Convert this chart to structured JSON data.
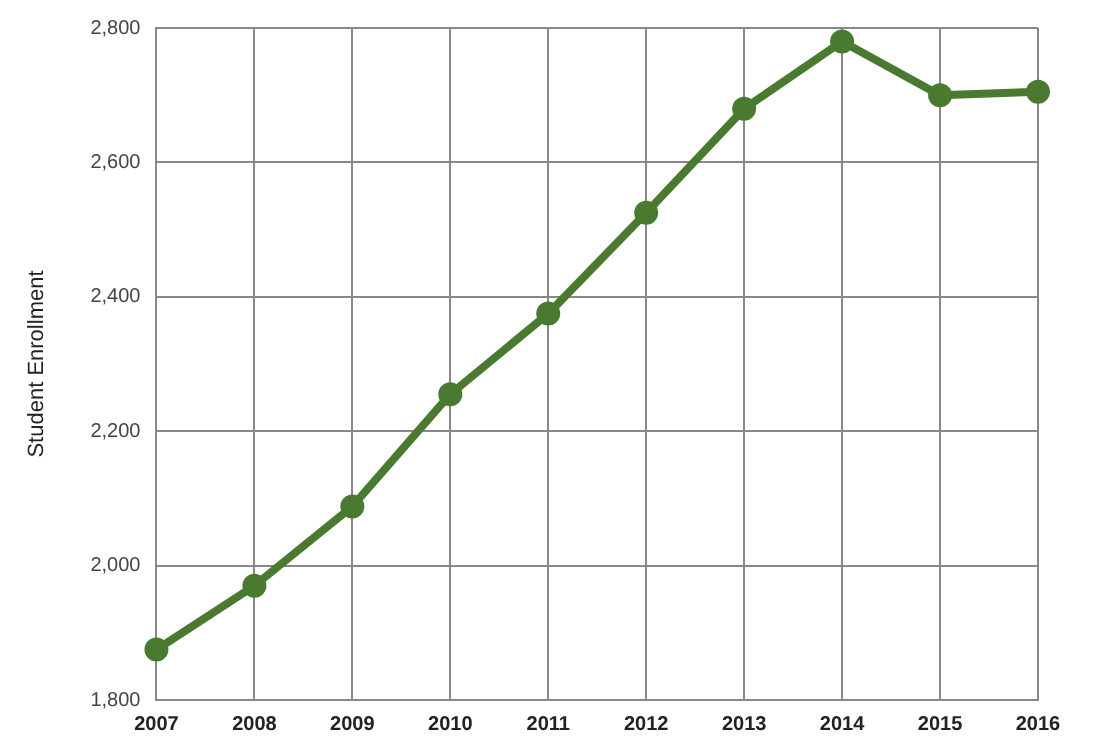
{
  "chart_data": {
    "type": "line",
    "ylabel": "Student Enrollment",
    "categories": [
      "2007",
      "2008",
      "2009",
      "2010",
      "2011",
      "2012",
      "2013",
      "2014",
      "2015",
      "2016"
    ],
    "series": [
      {
        "color": "#4a7a30",
        "values": [
          1875,
          1970,
          2088,
          2255,
          2375,
          2525,
          2680,
          2780,
          2700,
          2705
        ]
      }
    ],
    "ylim": [
      1800,
      2800
    ],
    "yticks": [
      {
        "value": 1800,
        "label": "1,800"
      },
      {
        "value": 2000,
        "label": "2,000"
      },
      {
        "value": 2200,
        "label": "2,200"
      },
      {
        "value": 2400,
        "label": "2,400"
      },
      {
        "value": 2600,
        "label": "2,600"
      },
      {
        "value": 2800,
        "label": "2,800"
      }
    ],
    "grid": true,
    "marker": "circle",
    "line_style": "solid",
    "legend": false
  }
}
